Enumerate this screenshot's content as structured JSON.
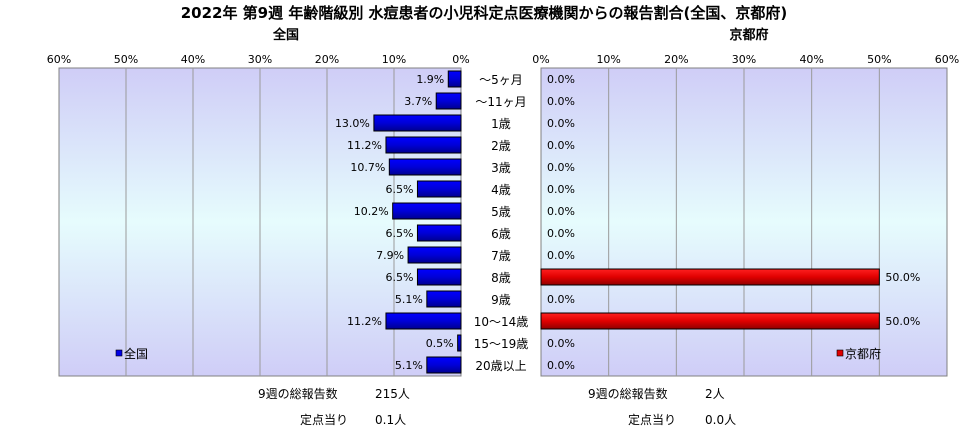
{
  "title": "2022年 第9週 年齢階級別 水痘患者の小児科定点医療機関からの報告割合(全国、京都府)",
  "chart_data": [
    {
      "type": "bar",
      "orientation": "horizontal",
      "direction": "right-to-left",
      "title": "全国",
      "legend": "全国",
      "legend_position": "bottom-left",
      "color": "#0000e6",
      "xlim": [
        0,
        60
      ],
      "ticks": [
        "60%",
        "50%",
        "40%",
        "30%",
        "20%",
        "10%",
        "0%"
      ],
      "categories": [
        "～5ヶ月",
        "～11ヶ月",
        "1歳",
        "2歳",
        "3歳",
        "4歳",
        "5歳",
        "6歳",
        "7歳",
        "8歳",
        "9歳",
        "10～14歳",
        "15～19歳",
        "20歳以上"
      ],
      "values": [
        1.9,
        3.7,
        13.0,
        11.2,
        10.7,
        6.5,
        10.2,
        6.5,
        7.9,
        6.5,
        5.1,
        11.2,
        0.5,
        5.1
      ],
      "labels": [
        "1.9%",
        "3.7%",
        "13.0%",
        "11.2%",
        "10.7%",
        "6.5%",
        "10.2%",
        "6.5%",
        "7.9%",
        "6.5%",
        "5.1%",
        "11.2%",
        "0.5%",
        "5.1%"
      ]
    },
    {
      "type": "bar",
      "orientation": "horizontal",
      "title": "京都府",
      "legend": "京都府",
      "legend_position": "bottom-right",
      "color": "#e00000",
      "xlim": [
        0,
        60
      ],
      "ticks": [
        "0%",
        "10%",
        "20%",
        "30%",
        "40%",
        "50%",
        "60%"
      ],
      "categories": [
        "～5ヶ月",
        "～11ヶ月",
        "1歳",
        "2歳",
        "3歳",
        "4歳",
        "5歳",
        "6歳",
        "7歳",
        "8歳",
        "9歳",
        "10～14歳",
        "15～19歳",
        "20歳以上"
      ],
      "values": [
        0,
        0,
        0,
        0,
        0,
        0,
        0,
        0,
        0,
        50.0,
        0,
        50.0,
        0,
        0
      ],
      "labels": [
        "0.0%",
        "0.0%",
        "0.0%",
        "0.0%",
        "0.0%",
        "0.0%",
        "0.0%",
        "0.0%",
        "0.0%",
        "50.0%",
        "0.0%",
        "50.0%",
        "0.0%",
        "0.0%"
      ]
    }
  ],
  "footer": {
    "national": {
      "reports_label": "9週の総報告数",
      "reports_value": "215人",
      "per_site_label": "定点当り",
      "per_site_value": "0.1人"
    },
    "kyoto": {
      "reports_label": "9週の総報告数",
      "reports_value": "2人",
      "per_site_label": "定点当り",
      "per_site_value": "0.0人"
    }
  }
}
